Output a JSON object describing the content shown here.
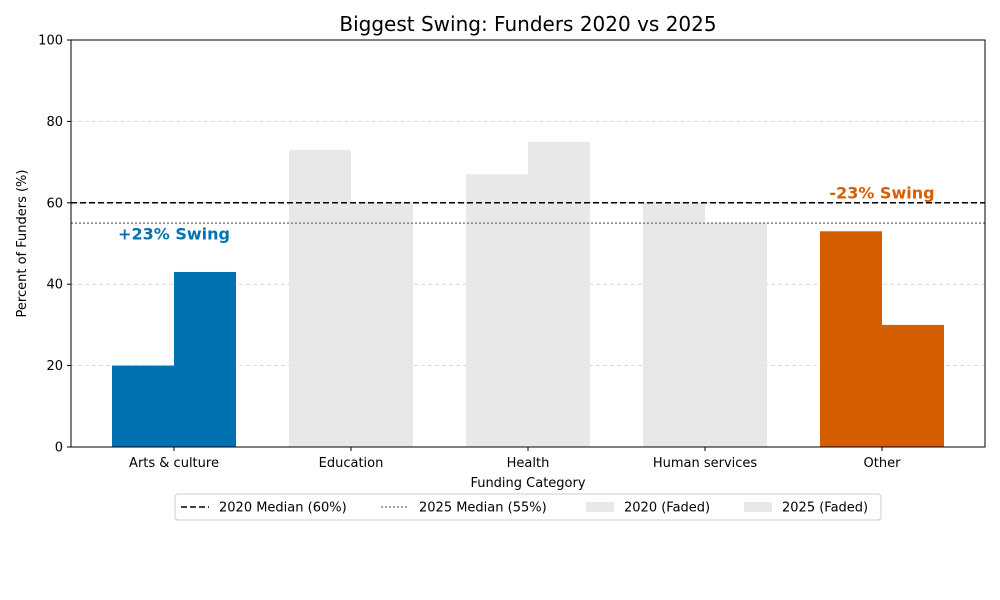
{
  "chart_data": {
    "type": "bar",
    "title": "Biggest Swing: Funders 2020 vs 2025",
    "xlabel": "Funding Category",
    "ylabel": "Percent of Funders (%)",
    "ylim": [
      0,
      100
    ],
    "yticks": [
      0,
      20,
      40,
      60,
      80,
      100
    ],
    "grid": "horizontal dashed",
    "legend_position": "bottom-center",
    "categories": [
      "Arts & culture",
      "Education",
      "Health",
      "Human services",
      "Other"
    ],
    "series": [
      {
        "name": "2020",
        "values": [
          20,
          73,
          67,
          60,
          53
        ]
      },
      {
        "name": "2025",
        "values": [
          43,
          60,
          75,
          55,
          30
        ]
      }
    ],
    "highlight": {
      "Arts & culture": "#0072b2",
      "Other": "#d55e00"
    },
    "faded_color": "#e8e8e8",
    "reference_lines": [
      {
        "label": "2020 Median (60%)",
        "value": 60,
        "style": "dashed",
        "color": "#000000"
      },
      {
        "label": "2025 Median (55%)",
        "value": 55,
        "style": "dotted",
        "color": "#808080"
      }
    ],
    "annotations": [
      {
        "text": "+23% Swing",
        "category": "Arts & culture",
        "y": 51,
        "color": "#0072b2"
      },
      {
        "text": "-23% Swing",
        "category": "Other",
        "y": 61,
        "color": "#d55e00"
      }
    ],
    "legend": [
      {
        "label": "2020 Median (60%)",
        "kind": "dashed"
      },
      {
        "label": "2025 Median (55%)",
        "kind": "dotted"
      },
      {
        "label": "2020 (Faded)",
        "kind": "patch"
      },
      {
        "label": "2025 (Faded)",
        "kind": "patch"
      }
    ]
  }
}
